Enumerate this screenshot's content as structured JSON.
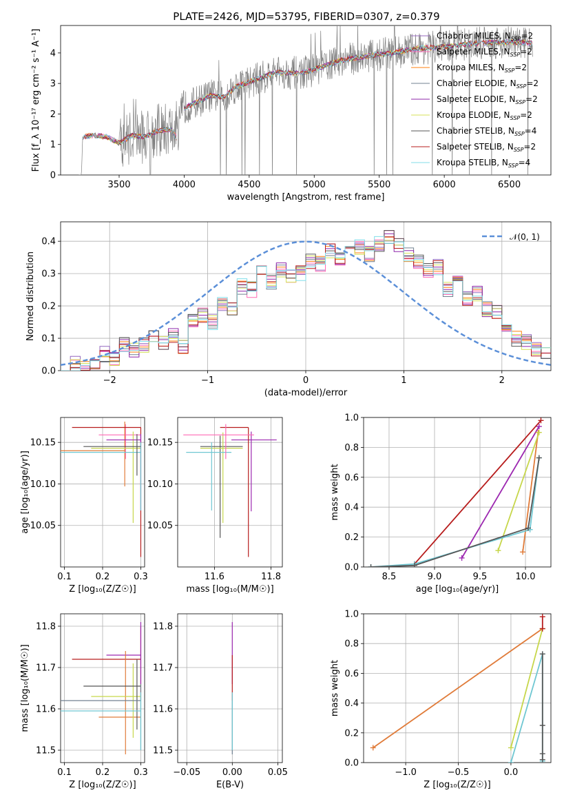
{
  "figure_title": "PLATE=2426, MJD=53795, FIBERID=0307, z=0.379",
  "colors": {
    "spectrum": "#808080",
    "chabrier_miles": "#9467bd",
    "salpeter_miles": "#ff69b4",
    "kroupa_miles": "#ff7f0e",
    "chabrier_elodie": "#708090",
    "salpeter_elodie": "#8e24aa",
    "kroupa_elodie": "#d4e157",
    "chabrier_stelib": "#555555",
    "salpeter_stelib": "#b71c1c",
    "kroupa_stelib": "#80deea",
    "normal": "#5b8fd8",
    "orange": "#e07b39",
    "yellowgreen": "#c6d64a",
    "cyan": "#6fc7d2",
    "purple": "#9c27b0",
    "darkred": "#b71c1c"
  },
  "legend_spectrum": [
    {
      "text": "Chabrier MILES, N",
      "sub": "SSP",
      "suffix": "=2",
      "color_key": "chabrier_miles"
    },
    {
      "text": "Salpeter MILES, N",
      "sub": "SSP",
      "suffix": "=2",
      "color_key": "salpeter_miles"
    },
    {
      "text": "Kroupa MILES, N",
      "sub": "SSP",
      "suffix": "=2",
      "color_key": "kroupa_miles"
    },
    {
      "text": "Chabrier ELODIE, N",
      "sub": "SSP",
      "suffix": "=2",
      "color_key": "chabrier_elodie"
    },
    {
      "text": "Salpeter ELODIE, N",
      "sub": "SSP",
      "suffix": "=2",
      "color_key": "salpeter_elodie"
    },
    {
      "text": "Kroupa ELODIE, N",
      "sub": "SSP",
      "suffix": "=2",
      "color_key": "kroupa_elodie"
    },
    {
      "text": "Chabrier STELIB, N",
      "sub": "SSP",
      "suffix": "=4",
      "color_key": "chabrier_stelib"
    },
    {
      "text": "Salpeter STELIB, N",
      "sub": "SSP",
      "suffix": "=2",
      "color_key": "salpeter_stelib"
    },
    {
      "text": "Kroupa STELIB, N",
      "sub": "SSP",
      "suffix": "=4",
      "color_key": "kroupa_stelib"
    }
  ],
  "legend_normal": "𝒩(0, 1)",
  "chart_data": [
    {
      "id": "spectrum",
      "type": "line",
      "xlabel": "wavelength [Angstrom, rest frame]",
      "ylabel": "Flux [f_λ 10⁻¹⁷ erg cm⁻² s⁻¹ A⁻¹]",
      "xlim": [
        3050,
        6820
      ],
      "ylim": [
        0,
        4.9
      ],
      "xticks": [
        3500,
        4000,
        4500,
        5000,
        5500,
        6000,
        6500
      ],
      "yticks": [
        0,
        1,
        2,
        3,
        4
      ],
      "trend": [
        [
          3190,
          0
        ],
        [
          3210,
          0
        ],
        [
          3220,
          1.25
        ],
        [
          3300,
          1.3
        ],
        [
          3400,
          1.25
        ],
        [
          3500,
          1.05
        ],
        [
          3600,
          1.3
        ],
        [
          3700,
          1.25
        ],
        [
          3800,
          1.45
        ],
        [
          3900,
          1.5
        ],
        [
          3950,
          1.15
        ],
        [
          4000,
          2.2
        ],
        [
          4100,
          2.4
        ],
        [
          4200,
          2.6
        ],
        [
          4300,
          2.55
        ],
        [
          4400,
          2.9
        ],
        [
          4500,
          3.05
        ],
        [
          4700,
          3.35
        ],
        [
          4900,
          3.35
        ],
        [
          5000,
          3.45
        ],
        [
          5200,
          3.75
        ],
        [
          5400,
          3.9
        ],
        [
          5600,
          4.0
        ],
        [
          5800,
          4.15
        ],
        [
          6000,
          4.2
        ],
        [
          6200,
          4.3
        ],
        [
          6400,
          4.35
        ],
        [
          6600,
          4.35
        ],
        [
          6680,
          4.3
        ]
      ]
    },
    {
      "id": "residuals",
      "type": "step",
      "xlabel": "(data-model)/error",
      "ylabel": "Normed distribution",
      "xlim": [
        -2.5,
        2.5
      ],
      "ylim": [
        0,
        0.46
      ],
      "xticks": [
        -2,
        -1,
        0,
        1,
        2
      ],
      "yticks": [
        0.0,
        0.1,
        0.2,
        0.3,
        0.4
      ],
      "bin_width": 0.1,
      "hist": [
        0.02,
        0.02,
        0.01,
        0.03,
        0.05,
        0.04,
        0.08,
        0.06,
        0.08,
        0.1,
        0.09,
        0.11,
        0.07,
        0.16,
        0.17,
        0.15,
        0.21,
        0.19,
        0.26,
        0.25,
        0.3,
        0.27,
        0.31,
        0.29,
        0.3,
        0.34,
        0.33,
        0.37,
        0.35,
        0.38,
        0.38,
        0.36,
        0.39,
        0.41,
        0.39,
        0.36,
        0.34,
        0.31,
        0.32,
        0.25,
        0.27,
        0.22,
        0.24,
        0.19,
        0.18,
        0.13,
        0.1,
        0.09,
        0.07,
        0.05
      ],
      "normal_curve": {
        "mu": 0,
        "sigma": 1
      }
    },
    {
      "id": "age_vs_Z",
      "type": "errorbar",
      "xlabel": "Z [log₁₀(Z/Z☉)]",
      "ylabel": "age [log₁₀(age/yr)]",
      "xlim": [
        0.09,
        0.31
      ],
      "ylim": [
        10.0,
        10.18
      ],
      "xticks": [
        0.1,
        0.2,
        0.3
      ],
      "yticks": [
        10.05,
        10.1,
        10.15
      ],
      "points": [
        {
          "x": 0.26,
          "y": 10.159,
          "xerr": [
            0.19,
            0.3
          ],
          "yerr": [
            10.13,
            10.172
          ],
          "color_key": "salpeter_miles"
        },
        {
          "x": 0.258,
          "y": 10.14,
          "xerr": [
            0.09,
            0.258
          ],
          "yerr": [
            10.097,
            10.175
          ],
          "color_key": "orange"
        },
        {
          "x": 0.28,
          "y": 10.143,
          "xerr": [
            0.17,
            0.3
          ],
          "yerr": [
            10.053,
            10.163
          ],
          "color_key": "yellowgreen"
        },
        {
          "x": 0.3,
          "y": 10.168,
          "xerr": [
            0.12,
            0.3
          ],
          "yerr": [
            10.012,
            10.168
          ],
          "color_key": "darkred"
        },
        {
          "x": 0.3,
          "y": 10.153,
          "xerr": [
            0.21,
            0.3
          ],
          "yerr": [
            10.068,
            10.16
          ],
          "color_key": "purple"
        },
        {
          "x": 0.3,
          "y": 10.138,
          "xerr": [
            0.09,
            0.3
          ],
          "yerr": [
            10.068,
            10.15
          ],
          "color_key": "cyan"
        },
        {
          "x": 0.29,
          "y": 10.145,
          "xerr": [
            0.15,
            0.3
          ],
          "yerr": [
            10.11,
            10.16
          ],
          "color_key": "chabrier_stelib"
        }
      ]
    },
    {
      "id": "age_vs_mass",
      "type": "errorbar",
      "xlabel": "mass [log₁₀(M/M☉)]",
      "ylabel": "",
      "xlim": [
        11.47,
        11.84
      ],
      "ylim": [
        10.0,
        10.18
      ],
      "xticks": [
        11.6,
        11.8
      ],
      "yticks": [
        10.05,
        10.1,
        10.15
      ],
      "points": [
        {
          "x": 11.73,
          "y": 10.153,
          "xerr": [
            11.66,
            11.82
          ],
          "yerr": [
            10.067,
            10.163
          ],
          "color_key": "purple"
        },
        {
          "x": 11.72,
          "y": 10.168,
          "xerr": [
            11.62,
            11.72
          ],
          "yerr": [
            10.012,
            10.168
          ],
          "color_key": "darkred"
        },
        {
          "x": 11.62,
          "y": 10.145,
          "xerr": [
            11.55,
            11.7
          ],
          "yerr": [
            10.035,
            10.158
          ],
          "color_key": "chabrier_stelib"
        },
        {
          "x": 11.63,
          "y": 10.143,
          "xerr": [
            11.55,
            11.7
          ],
          "yerr": [
            10.053,
            10.162
          ],
          "color_key": "yellowgreen"
        },
        {
          "x": 11.59,
          "y": 10.138,
          "xerr": [
            11.5,
            11.66
          ],
          "yerr": [
            10.068,
            10.15
          ],
          "color_key": "cyan"
        },
        {
          "x": 11.64,
          "y": 10.159,
          "xerr": [
            11.49,
            11.74
          ],
          "yerr": [
            10.13,
            10.172
          ],
          "color_key": "salpeter_miles"
        }
      ]
    },
    {
      "id": "weight_vs_age",
      "type": "line",
      "xlabel": "age [log₁₀(age/yr)]",
      "ylabel": "mass weight",
      "xlim": [
        8.22,
        10.28
      ],
      "ylim": [
        0,
        1.0
      ],
      "xticks": [
        8.5,
        9.0,
        9.5,
        10.0
      ],
      "yticks": [
        0.0,
        0.2,
        0.4,
        0.6,
        0.8,
        1.0
      ],
      "series": [
        {
          "color_key": "darkred",
          "points": [
            [
              8.78,
              0.02
            ],
            [
              10.17,
              0.98
            ]
          ]
        },
        {
          "color_key": "purple",
          "points": [
            [
              9.3,
              0.06
            ],
            [
              10.15,
              0.94
            ]
          ]
        },
        {
          "color_key": "orange",
          "points": [
            [
              9.97,
              0.1
            ],
            [
              10.14,
              0.9
            ]
          ]
        },
        {
          "color_key": "yellowgreen",
          "points": [
            [
              9.7,
              0.11
            ],
            [
              10.15,
              0.9
            ]
          ]
        },
        {
          "color_key": "cyan",
          "points": [
            [
              8.3,
              0.0
            ],
            [
              8.78,
              0.02
            ],
            [
              10.05,
              0.25
            ],
            [
              10.15,
              0.73
            ]
          ]
        },
        {
          "color_key": "chabrier_stelib",
          "points": [
            [
              8.3,
              0.0
            ],
            [
              8.78,
              0.01
            ],
            [
              10.03,
              0.26
            ],
            [
              10.15,
              0.73
            ]
          ]
        }
      ]
    },
    {
      "id": "mass_vs_Z",
      "type": "errorbar",
      "xlabel": "Z [log₁₀(Z/Z☉)]",
      "ylabel": "mass [log₁₀(M/M☉)]",
      "xlim": [
        0.09,
        0.31
      ],
      "ylim": [
        11.47,
        11.83
      ],
      "xticks": [
        0.1,
        0.2,
        0.3
      ],
      "yticks": [
        11.5,
        11.6,
        11.7,
        11.8
      ],
      "points": [
        {
          "x": 0.3,
          "y": 11.72,
          "xerr": [
            0.12,
            0.3
          ],
          "yerr": [
            11.62,
            11.8
          ],
          "color_key": "darkred"
        },
        {
          "x": 0.3,
          "y": 11.73,
          "xerr": [
            0.21,
            0.3
          ],
          "yerr": [
            11.66,
            11.81
          ],
          "color_key": "purple"
        },
        {
          "x": 0.26,
          "y": 11.58,
          "xerr": [
            0.19,
            0.3
          ],
          "yerr": [
            11.49,
            11.74
          ],
          "color_key": "orange"
        },
        {
          "x": 0.28,
          "y": 11.63,
          "xerr": [
            0.17,
            0.3
          ],
          "yerr": [
            11.53,
            11.71
          ],
          "color_key": "yellowgreen"
        },
        {
          "x": 0.29,
          "y": 11.655,
          "xerr": [
            0.15,
            0.3
          ],
          "yerr": [
            11.55,
            11.72
          ],
          "color_key": "chabrier_stelib"
        },
        {
          "x": 0.3,
          "y": 11.62,
          "xerr": [
            0.09,
            0.3
          ],
          "yerr": [
            11.5,
            11.66
          ],
          "color_key": "chabrier_elodie"
        },
        {
          "x": 0.3,
          "y": 11.595,
          "xerr": [
            0.09,
            0.3
          ],
          "yerr": [
            11.5,
            11.64
          ],
          "color_key": "cyan"
        }
      ]
    },
    {
      "id": "mass_vs_ebv",
      "type": "errorbar",
      "xlabel": "E(B-V)",
      "ylabel": "",
      "xlim": [
        -0.06,
        0.055
      ],
      "ylim": [
        11.47,
        11.83
      ],
      "xticks": [
        -0.05,
        0.0,
        0.05
      ],
      "yticks": [
        11.5,
        11.6,
        11.7,
        11.8
      ],
      "points": [
        {
          "x": 0.0,
          "y": 11.73,
          "xerr": [
            0.0,
            0.0
          ],
          "yerr": [
            11.66,
            11.81
          ],
          "color_key": "purple"
        },
        {
          "x": 0.0,
          "y": 11.72,
          "xerr": [
            0.0,
            0.0
          ],
          "yerr": [
            11.62,
            11.73
          ],
          "color_key": "darkred"
        },
        {
          "x": 0.0,
          "y": 11.6,
          "xerr": [
            0.0,
            0.0
          ],
          "yerr": [
            11.49,
            11.62
          ],
          "color_key": "chabrier_elodie"
        },
        {
          "x": 0.0,
          "y": 11.59,
          "xerr": [
            0.0,
            0.0
          ],
          "yerr": [
            11.5,
            11.64
          ],
          "color_key": "cyan"
        }
      ]
    },
    {
      "id": "weight_vs_Z",
      "type": "line",
      "xlabel": "Z [log₁₀(Z/Z☉)]",
      "ylabel": "mass weight",
      "xlim": [
        -1.4,
        0.38
      ],
      "ylim": [
        0,
        1.0
      ],
      "xticks": [
        -1.0,
        -0.5,
        0.0
      ],
      "yticks": [
        0.0,
        0.2,
        0.4,
        0.6,
        0.8,
        1.0
      ],
      "series": [
        {
          "color_key": "orange",
          "points": [
            [
              -1.31,
              0.1
            ],
            [
              0.3,
              0.9
            ]
          ]
        },
        {
          "color_key": "yellowgreen",
          "points": [
            [
              0.0,
              0.1
            ],
            [
              0.3,
              0.9
            ]
          ]
        },
        {
          "color_key": "cyan",
          "points": [
            [
              0.0,
              0.0
            ],
            [
              0.3,
              0.73
            ],
            [
              0.3,
              0.01
            ]
          ]
        },
        {
          "color_key": "darkred",
          "points": [
            [
              0.3,
              0.9
            ],
            [
              0.3,
              0.98
            ]
          ]
        },
        {
          "color_key": "chabrier_stelib",
          "points": [
            [
              0.3,
              0.73
            ],
            [
              0.3,
              0.25
            ],
            [
              0.3,
              0.06
            ],
            [
              0.3,
              0.02
            ]
          ]
        }
      ]
    }
  ]
}
